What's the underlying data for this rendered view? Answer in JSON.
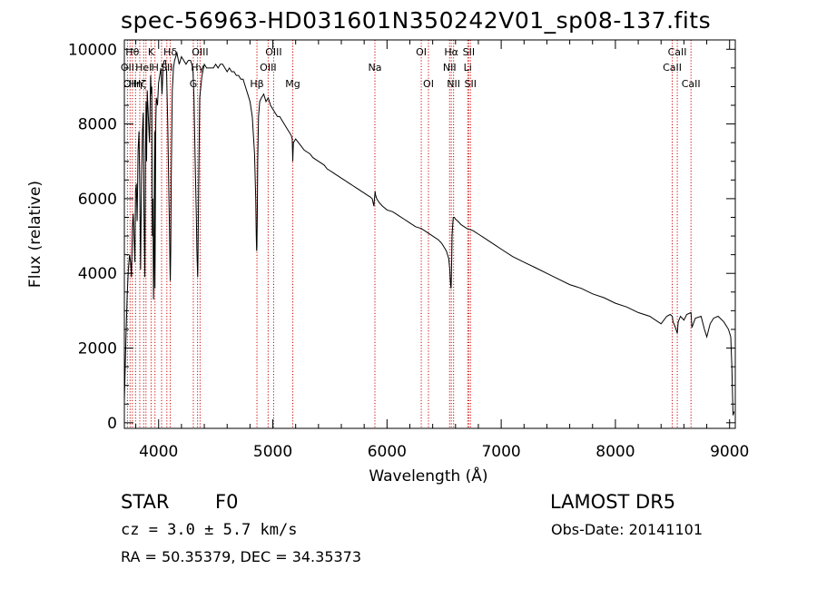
{
  "chart_data": {
    "type": "line",
    "title": "spec-56963-HD031601N350242V01_sp08-137.fits",
    "xlabel": "Wavelength (Å)",
    "ylabel": "Flux (relative)",
    "xlim": [
      3700,
      9050
    ],
    "ylim": [
      -150,
      10250
    ],
    "x_ticks": [
      4000,
      5000,
      6000,
      7000,
      8000,
      9000
    ],
    "y_ticks": [
      0,
      2000,
      4000,
      6000,
      8000,
      10000
    ],
    "x_tick_labels": [
      "4000",
      "5000",
      "6000",
      "7000",
      "8000",
      "9000"
    ],
    "y_tick_labels": [
      "0",
      "2000",
      "4000",
      "6000",
      "8000",
      "10000"
    ],
    "grid": false,
    "line_color": "#000000",
    "marker_color": "#cc0000",
    "series": [
      {
        "x": [
          3700,
          3715,
          3725,
          3735,
          3745,
          3755,
          3762,
          3770,
          3778,
          3785,
          3792,
          3798,
          3805,
          3812,
          3820,
          3828,
          3835,
          3842,
          3850,
          3858,
          3865,
          3872,
          3880,
          3885,
          3890,
          3895,
          3900,
          3910,
          3920,
          3930,
          3935,
          3940,
          3945,
          3950,
          3955,
          3960,
          3965,
          3968,
          3970,
          3975,
          3980,
          3990,
          4000,
          4010,
          4020,
          4030,
          4040,
          4050,
          4060,
          4070,
          4080,
          4090,
          4095,
          4100,
          4102,
          4106,
          4110,
          4120,
          4130,
          4140,
          4150,
          4160,
          4180,
          4200,
          4220,
          4240,
          4260,
          4280,
          4300,
          4310,
          4320,
          4330,
          4335,
          4340,
          4342,
          4345,
          4350,
          4360,
          4380,
          4400,
          4420,
          4440,
          4460,
          4480,
          4500,
          4520,
          4540,
          4560,
          4580,
          4600,
          4620,
          4640,
          4660,
          4680,
          4700,
          4720,
          4740,
          4760,
          4780,
          4800,
          4820,
          4840,
          4850,
          4855,
          4858,
          4861,
          4864,
          4868,
          4875,
          4885,
          4900,
          4920,
          4940,
          4960,
          4980,
          5000,
          5020,
          5040,
          5060,
          5080,
          5100,
          5120,
          5140,
          5160,
          5170,
          5175,
          5180,
          5200,
          5225,
          5250,
          5275,
          5300,
          5325,
          5350,
          5375,
          5400,
          5425,
          5450,
          5475,
          5500,
          5525,
          5550,
          5575,
          5600,
          5625,
          5650,
          5675,
          5700,
          5725,
          5750,
          5775,
          5800,
          5825,
          5850,
          5870,
          5885,
          5890,
          5893,
          5896,
          5900,
          5910,
          5930,
          5960,
          6000,
          6050,
          6100,
          6150,
          6200,
          6250,
          6300,
          6350,
          6400,
          6450,
          6480,
          6500,
          6520,
          6540,
          6550,
          6555,
          6560,
          6562,
          6564,
          6567,
          6570,
          6575,
          6580,
          6590,
          6600,
          6620,
          6650,
          6700,
          6750,
          6800,
          6850,
          6900,
          6950,
          7000,
          7100,
          7200,
          7300,
          7400,
          7500,
          7600,
          7700,
          7800,
          7900,
          8000,
          8100,
          8200,
          8300,
          8400,
          8450,
          8480,
          8498,
          8505,
          8520,
          8542,
          8550,
          8570,
          8600,
          8625,
          8662,
          8670,
          8700,
          8750,
          8780,
          8800,
          8830,
          8860,
          8900,
          8950,
          8990,
          9010,
          9020,
          9030,
          9040
        ],
        "y": [
          600,
          2400,
          3400,
          4100,
          4500,
          4300,
          3900,
          5200,
          5600,
          4900,
          4300,
          6200,
          6400,
          5400,
          7300,
          7800,
          6200,
          4100,
          6600,
          7800,
          8300,
          5800,
          3900,
          7300,
          8600,
          7000,
          8900,
          8200,
          7500,
          9300,
          8800,
          9000,
          5000,
          6000,
          3300,
          4500,
          7800,
          3600,
          5000,
          8000,
          8700,
          8500,
          9100,
          9300,
          9500,
          8800,
          9600,
          9700,
          9700,
          9400,
          8000,
          6000,
          5200,
          4100,
          3800,
          4600,
          6500,
          8900,
          9500,
          9700,
          9800,
          9900,
          9600,
          9800,
          9700,
          9600,
          9700,
          9700,
          9500,
          8700,
          7000,
          5500,
          4600,
          4100,
          3900,
          4400,
          6300,
          8700,
          9300,
          9600,
          9500,
          9500,
          9500,
          9500,
          9600,
          9500,
          9600,
          9600,
          9500,
          9400,
          9500,
          9400,
          9400,
          9300,
          9300,
          9200,
          9200,
          9000,
          8800,
          8600,
          8200,
          7200,
          6000,
          5000,
          4600,
          4700,
          5500,
          7000,
          8200,
          8600,
          8700,
          8800,
          8600,
          8700,
          8500,
          8400,
          8300,
          8200,
          8200,
          8100,
          8000,
          7900,
          7800,
          7700,
          7600,
          7000,
          7500,
          7600,
          7500,
          7400,
          7300,
          7250,
          7200,
          7100,
          7050,
          7000,
          6950,
          6900,
          6800,
          6750,
          6700,
          6650,
          6600,
          6550,
          6500,
          6450,
          6400,
          6350,
          6300,
          6250,
          6200,
          6150,
          6100,
          6050,
          6000,
          5800,
          6000,
          6100,
          6200,
          6100,
          6000,
          5900,
          5800,
          5700,
          5650,
          5550,
          5450,
          5350,
          5250,
          5200,
          5100,
          5000,
          4900,
          4800,
          4700,
          4600,
          4400,
          4100,
          3800,
          3600,
          3650,
          4000,
          4500,
          5000,
          5300,
          5500,
          5500,
          5450,
          5400,
          5300,
          5200,
          5150,
          5050,
          4950,
          4850,
          4750,
          4650,
          4450,
          4300,
          4150,
          4000,
          3850,
          3700,
          3600,
          3450,
          3350,
          3200,
          3100,
          2950,
          2850,
          2650,
          2850,
          2900,
          2850,
          2700,
          2600,
          2400,
          2700,
          2850,
          2750,
          2900,
          2950,
          2550,
          2800,
          2850,
          2500,
          2300,
          2650,
          2800,
          2850,
          2700,
          2500,
          2300,
          1500,
          200,
          300
        ]
      }
    ],
    "line_markers": [
      {
        "x": 3727,
        "label": "OII",
        "row": 1
      },
      {
        "x": 3750,
        "label": "OII",
        "row": 2
      },
      {
        "x": 3770,
        "label": "Hθ",
        "row": 0
      },
      {
        "x": 3798,
        "label": "Hη",
        "row": 2
      },
      {
        "x": 3835,
        "label": "Hζ",
        "row": 2
      },
      {
        "x": 3869,
        "label": "HeI",
        "row": 1
      },
      {
        "x": 3889,
        "label": "",
        "row": 0
      },
      {
        "x": 3934,
        "label": "K",
        "row": 0
      },
      {
        "x": 3968,
        "label": "H",
        "row": 1
      },
      {
        "x": 4026,
        "label": "",
        "row": 0
      },
      {
        "x": 4072,
        "label": "SII",
        "row": 1
      },
      {
        "x": 4102,
        "label": "Hδ",
        "row": 0
      },
      {
        "x": 4304,
        "label": "G",
        "row": 2
      },
      {
        "x": 4341,
        "label": "Hγ",
        "row": 1
      },
      {
        "x": 4363,
        "label": "OIII",
        "row": 0
      },
      {
        "x": 4861,
        "label": "Hβ",
        "row": 2
      },
      {
        "x": 4959,
        "label": "OIII",
        "row": 1
      },
      {
        "x": 5007,
        "label": "OIII",
        "row": 0
      },
      {
        "x": 5175,
        "label": "Mg",
        "row": 2
      },
      {
        "x": 5894,
        "label": "Na",
        "row": 1
      },
      {
        "x": 6300,
        "label": "OI",
        "row": 0
      },
      {
        "x": 6363,
        "label": "OI",
        "row": 2
      },
      {
        "x": 6548,
        "label": "NII",
        "row": 1
      },
      {
        "x": 6563,
        "label": "Hα",
        "row": 0
      },
      {
        "x": 6583,
        "label": "NII",
        "row": 2
      },
      {
        "x": 6716,
        "label": "SII",
        "row": 0
      },
      {
        "x": 6707,
        "label": "Li",
        "row": 1
      },
      {
        "x": 6731,
        "label": "SII",
        "row": 2
      },
      {
        "x": 8498,
        "label": "CaII",
        "row": 1
      },
      {
        "x": 8542,
        "label": "CaII",
        "row": 0
      },
      {
        "x": 8662,
        "label": "CaII",
        "row": 2
      }
    ]
  },
  "info": {
    "object_class": "STAR",
    "subclass": "F0",
    "survey": "LAMOST DR5",
    "redshift": "cz = 3.0 ± 5.7 km/s",
    "obs_date": "Obs-Date: 20141101",
    "coords": "RA =  50.35379, DEC =  34.35373"
  }
}
